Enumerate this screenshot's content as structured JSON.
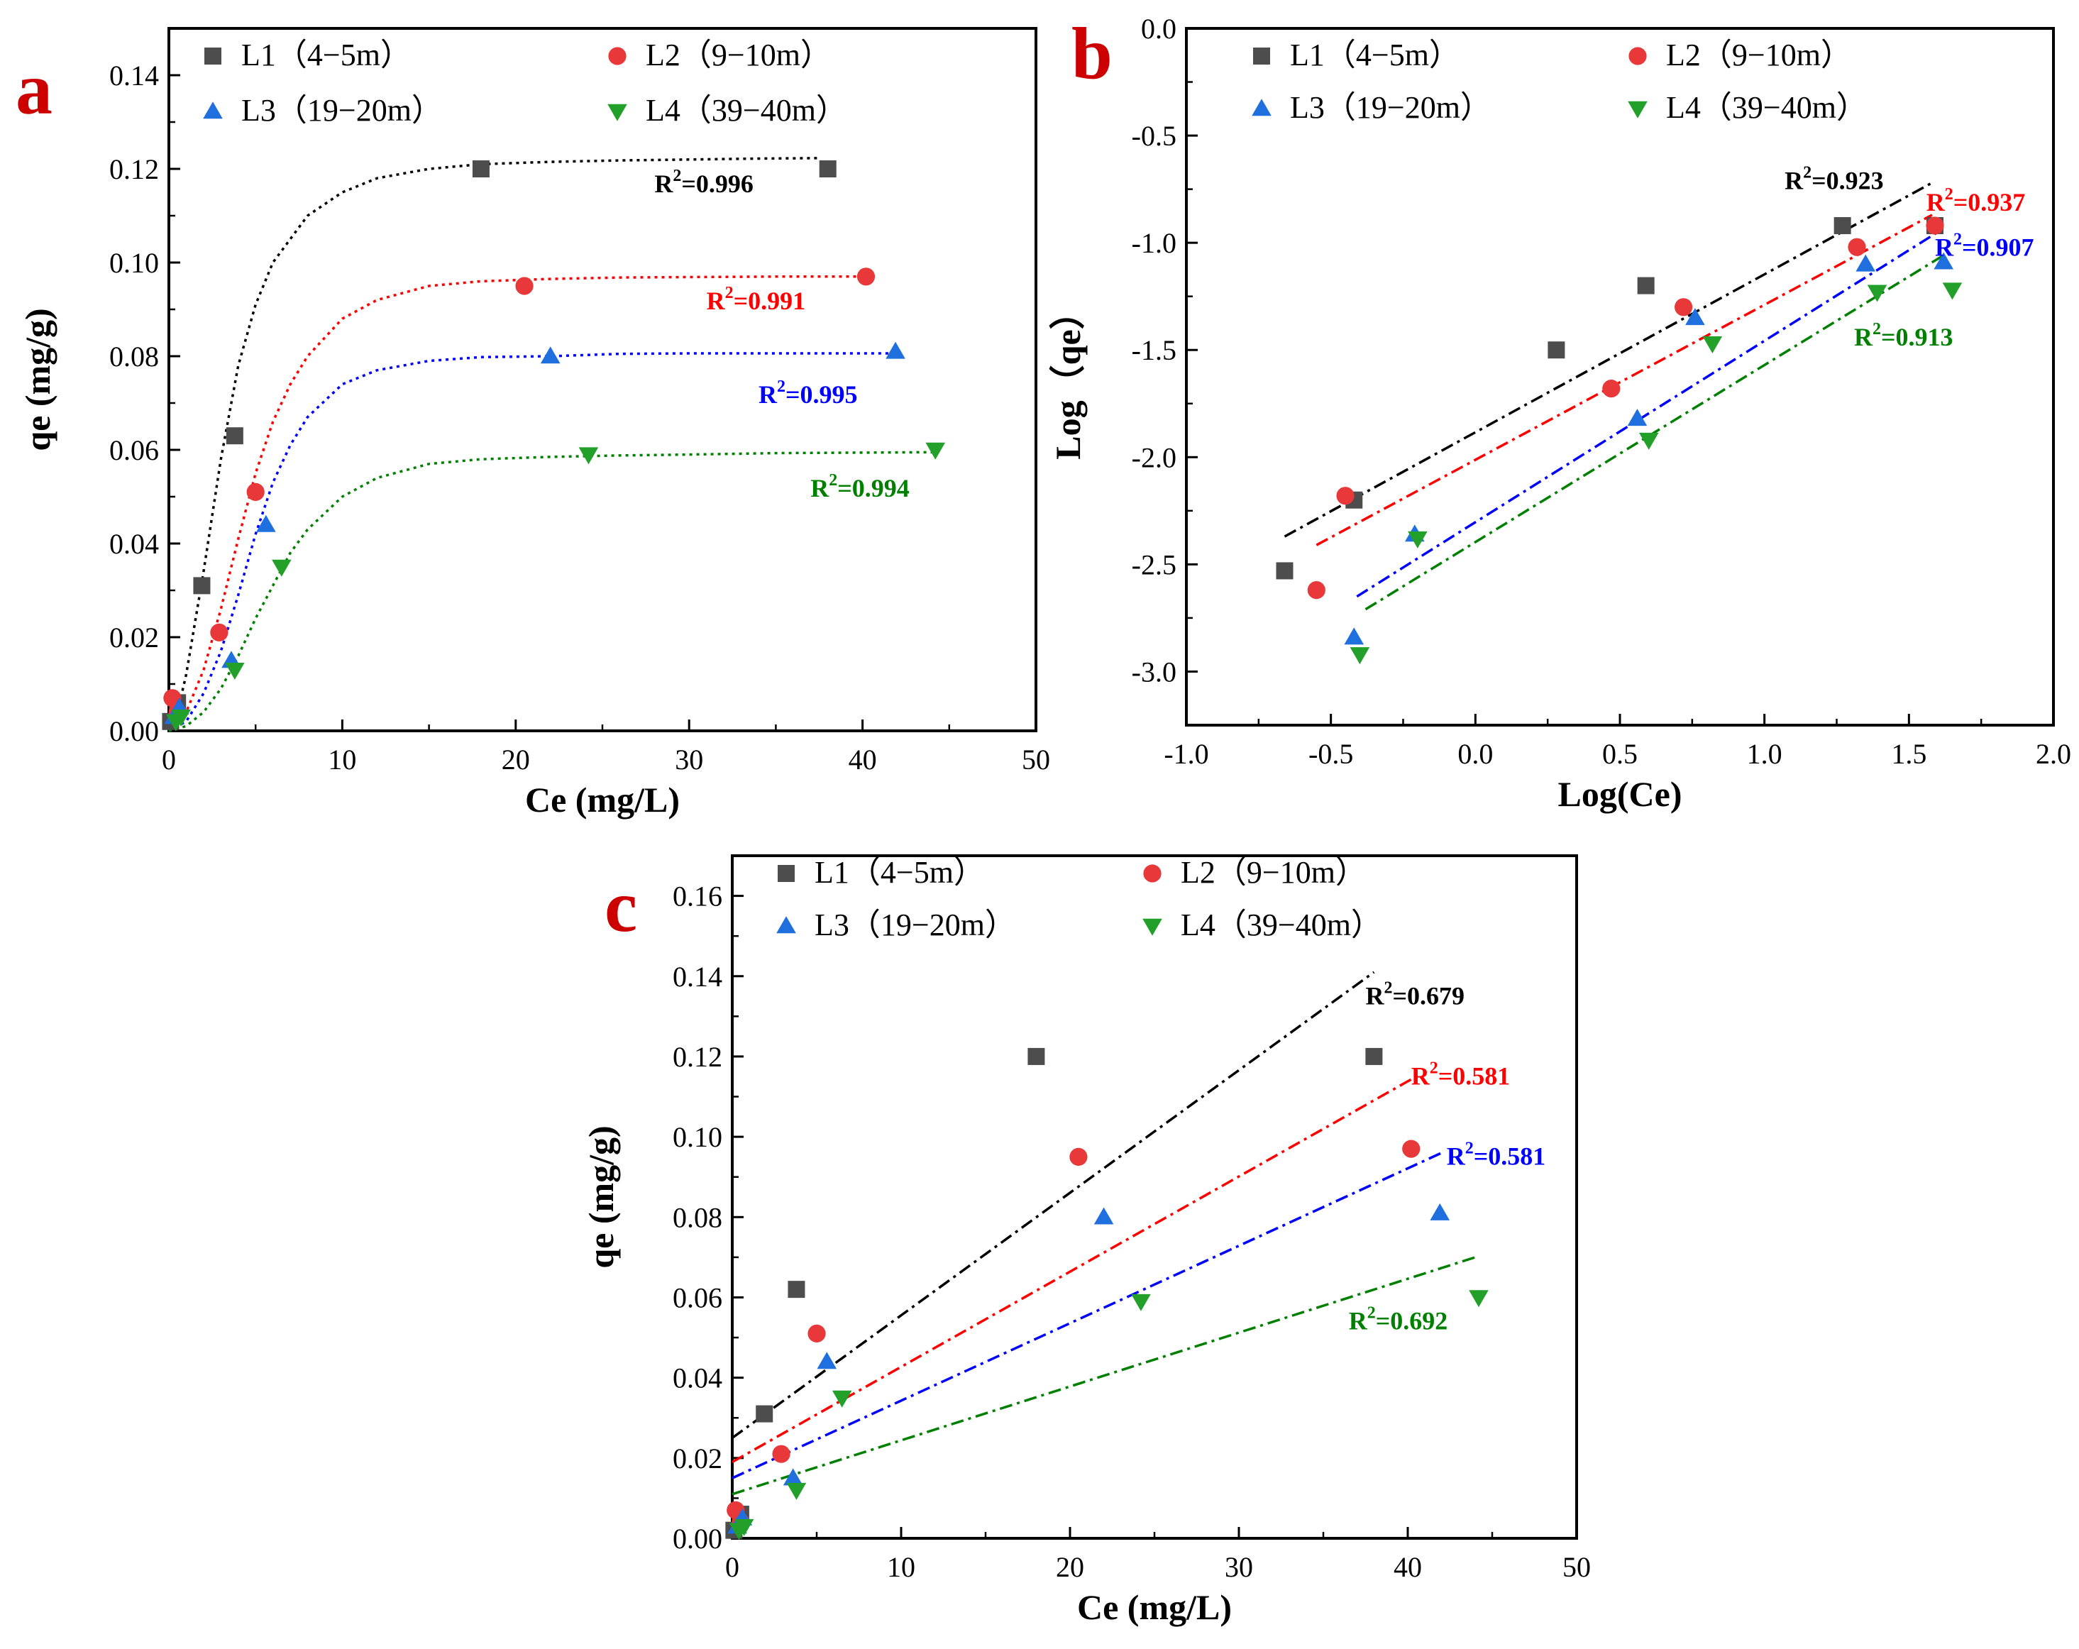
{
  "panels": [
    {
      "id": "a",
      "letter": "a",
      "letter_color": "#cc0000",
      "xlabel": "Ce (mg/L)",
      "ylabel": "qe (mg/g)",
      "xlim": [
        0,
        50
      ],
      "ylim": [
        0,
        0.15
      ],
      "xticks": [
        0,
        10,
        20,
        30,
        40,
        50
      ],
      "yticks": [
        0.0,
        0.02,
        0.04,
        0.06,
        0.08,
        0.1,
        0.12,
        0.14
      ],
      "ytick_decimals": 2,
      "xtick_decimals": 0,
      "fit_style": "dotted",
      "legend": [
        {
          "label": "L1（4−5m）",
          "series": 0
        },
        {
          "label": "L2（9−10m）",
          "series": 1
        },
        {
          "label": "L3（19−20m）",
          "series": 2
        },
        {
          "label": "L4（39−40m）",
          "series": 3
        }
      ],
      "r2_labels": [
        {
          "text_pre": "R",
          "sup": "2",
          "text_post": "=0.996",
          "series": 0,
          "at": [
            28,
            0.115
          ]
        },
        {
          "text_pre": "R",
          "sup": "2",
          "text_post": "=0.991",
          "series": 1,
          "at": [
            31,
            0.09
          ]
        },
        {
          "text_pre": "R",
          "sup": "2",
          "text_post": "=0.995",
          "series": 2,
          "at": [
            34,
            0.07
          ]
        },
        {
          "text_pre": "R",
          "sup": "2",
          "text_post": "=0.994",
          "series": 3,
          "at": [
            37,
            0.05
          ]
        }
      ]
    },
    {
      "id": "b",
      "letter": "b",
      "letter_color": "#cc0000",
      "xlabel": "Log(Ce)",
      "ylabel": "Log（qe）",
      "xlim": [
        -1.0,
        2.0
      ],
      "ylim": [
        -3.25,
        0.0
      ],
      "xticks": [
        -1.0,
        -0.5,
        0.0,
        0.5,
        1.0,
        1.5,
        2.0
      ],
      "yticks": [
        -3.0,
        -2.5,
        -2.0,
        -1.5,
        -1.0,
        -0.5,
        0.0
      ],
      "ytick_decimals": 1,
      "xtick_decimals": 1,
      "fit_style": "dashdot",
      "legend": [
        {
          "label": "L1（4−5m）",
          "series": 0
        },
        {
          "label": "L2（9−10m）",
          "series": 1
        },
        {
          "label": "L3（19−20m）",
          "series": 2
        },
        {
          "label": "L4（39−40m）",
          "series": 3
        }
      ],
      "r2_labels": [
        {
          "text_pre": "R",
          "sup": "2",
          "text_post": "=0.923",
          "series": 0,
          "at": [
            1.07,
            -0.75
          ]
        },
        {
          "text_pre": "R",
          "sup": "2",
          "text_post": "=0.937",
          "series": 1,
          "at": [
            1.56,
            -0.85
          ]
        },
        {
          "text_pre": "R",
          "sup": "2",
          "text_post": "=0.907",
          "series": 2,
          "at": [
            1.59,
            -1.06
          ]
        },
        {
          "text_pre": "R",
          "sup": "2",
          "text_post": "=0.913",
          "series": 3,
          "at": [
            1.31,
            -1.48
          ]
        }
      ]
    },
    {
      "id": "c",
      "letter": "c",
      "letter_color": "#cc0000",
      "xlabel": "Ce (mg/L)",
      "ylabel": "qe (mg/g)",
      "xlim": [
        0,
        50
      ],
      "ylim": [
        0,
        0.17
      ],
      "xticks": [
        0,
        10,
        20,
        30,
        40,
        50
      ],
      "yticks": [
        0.0,
        0.02,
        0.04,
        0.06,
        0.08,
        0.1,
        0.12,
        0.14,
        0.16
      ],
      "ytick_decimals": 2,
      "xtick_decimals": 0,
      "fit_style": "dashdot",
      "legend": [
        {
          "label": "L1（4−5m）",
          "series": 0
        },
        {
          "label": "L2（9−10m）",
          "series": 1
        },
        {
          "label": "L3（19−20m）",
          "series": 2
        },
        {
          "label": "L4（39−40m）",
          "series": 3
        }
      ],
      "r2_labels": [
        {
          "text_pre": "R",
          "sup": "2",
          "text_post": "=0.679",
          "series": 0,
          "at": [
            37.5,
            0.133
          ]
        },
        {
          "text_pre": "R",
          "sup": "2",
          "text_post": "=0.581",
          "series": 1,
          "at": [
            40.2,
            0.113
          ]
        },
        {
          "text_pre": "R",
          "sup": "2",
          "text_post": "=0.581",
          "series": 2,
          "at": [
            42.3,
            0.093
          ]
        },
        {
          "text_pre": "R",
          "sup": "2",
          "text_post": "=0.692",
          "series": 3,
          "at": [
            36.5,
            0.052
          ]
        }
      ]
    }
  ],
  "chart_data": [
    {
      "panel": "a",
      "type": "scatter",
      "xlabel": "Ce (mg/L)",
      "ylabel": "qe (mg/g)",
      "xlim": [
        0,
        50
      ],
      "ylim": [
        0,
        0.15
      ],
      "legend_placement": "top",
      "grid": false,
      "series": [
        {
          "name": "L1（4−5m）",
          "color": "#4d4d4d",
          "marker": "square",
          "fit_color": "#000000",
          "x": [
            0.1,
            0.5,
            1.9,
            3.8,
            18.0,
            38.0
          ],
          "y": [
            0.002,
            0.006,
            0.031,
            0.063,
            0.12,
            0.12
          ],
          "fit_x": [
            0,
            0.5,
            1,
            2,
            3,
            4,
            5,
            6,
            8,
            10,
            12,
            15,
            18,
            22,
            26,
            30,
            34,
            37.5
          ],
          "fit_y": [
            0,
            0.004,
            0.012,
            0.034,
            0.058,
            0.078,
            0.091,
            0.1,
            0.11,
            0.115,
            0.118,
            0.12,
            0.121,
            0.1215,
            0.1218,
            0.122,
            0.1222,
            0.1223
          ]
        },
        {
          "name": "L2（9−10m）",
          "color": "#e8383a",
          "marker": "circle",
          "fit_color": "#ff0000",
          "x": [
            0.2,
            0.5,
            2.9,
            5.0,
            20.5,
            40.2
          ],
          "y": [
            0.007,
            0.004,
            0.021,
            0.051,
            0.095,
            0.097
          ],
          "fit_x": [
            0,
            1,
            2,
            3,
            4,
            5,
            6,
            7,
            8,
            10,
            12,
            15,
            18,
            22,
            26,
            30,
            35,
            40
          ],
          "fit_y": [
            0,
            0.004,
            0.013,
            0.026,
            0.041,
            0.055,
            0.066,
            0.074,
            0.08,
            0.088,
            0.092,
            0.095,
            0.096,
            0.0965,
            0.0968,
            0.0969,
            0.097,
            0.097
          ]
        },
        {
          "name": "L3（19−20m）",
          "color": "#1f6fde",
          "marker": "triangle-up",
          "fit_color": "#0000ff",
          "x": [
            0.3,
            0.6,
            3.6,
            5.6,
            22.0,
            41.9
          ],
          "y": [
            0.003,
            0.005,
            0.015,
            0.044,
            0.08,
            0.081
          ],
          "fit_x": [
            0,
            1,
            2,
            3,
            4,
            5,
            6,
            7,
            8,
            10,
            12,
            15,
            18,
            22,
            26,
            30,
            35,
            42
          ],
          "fit_y": [
            0,
            0.002,
            0.008,
            0.017,
            0.029,
            0.042,
            0.053,
            0.061,
            0.067,
            0.074,
            0.077,
            0.079,
            0.0798,
            0.08,
            0.0805,
            0.0806,
            0.0806,
            0.0806
          ]
        },
        {
          "name": "L4（39−40m）",
          "color": "#22a02a",
          "marker": "triangle-down",
          "fit_color": "#008000",
          "x": [
            0.4,
            0.7,
            3.8,
            6.5,
            24.2,
            44.2
          ],
          "y": [
            0.002,
            0.003,
            0.013,
            0.035,
            0.059,
            0.06
          ],
          "fit_x": [
            0,
            1,
            2,
            3,
            4,
            5,
            6,
            7,
            8,
            10,
            12,
            15,
            18,
            22,
            26,
            30,
            35,
            44
          ],
          "fit_y": [
            0,
            0.001,
            0.004,
            0.009,
            0.016,
            0.024,
            0.031,
            0.038,
            0.043,
            0.05,
            0.054,
            0.057,
            0.058,
            0.0585,
            0.0588,
            0.059,
            0.0593,
            0.0595
          ]
        }
      ],
      "annotations": [
        "R2=0.996",
        "R2=0.991",
        "R2=0.995",
        "R2=0.994"
      ]
    },
    {
      "panel": "b",
      "type": "scatter",
      "xlabel": "Log(Ce)",
      "ylabel": "Log（qe）",
      "xlim": [
        -1.0,
        2.0
      ],
      "ylim": [
        -3.25,
        0.0
      ],
      "legend_placement": "top",
      "grid": false,
      "series": [
        {
          "name": "L1（4−5m）",
          "color": "#4d4d4d",
          "marker": "square",
          "fit_color": "#000000",
          "x": [
            -0.66,
            -0.42,
            0.28,
            0.59,
            1.27,
            1.59
          ],
          "y": [
            -2.53,
            -2.2,
            -1.5,
            -1.2,
            -0.92,
            -0.92
          ],
          "fit_x": [
            -0.66,
            1.58
          ],
          "fit_y": [
            -2.37,
            -0.72
          ]
        },
        {
          "name": "L2（9−10m）",
          "color": "#e8383a",
          "marker": "circle",
          "fit_color": "#ff0000",
          "x": [
            -0.55,
            -0.45,
            0.47,
            0.72,
            1.32,
            1.59
          ],
          "y": [
            -2.62,
            -2.18,
            -1.68,
            -1.3,
            -1.02,
            -0.92
          ],
          "fit_x": [
            -0.55,
            1.58
          ],
          "fit_y": [
            -2.41,
            -0.87
          ]
        },
        {
          "name": "L3（19−20m）",
          "color": "#1f6fde",
          "marker": "triangle-up",
          "fit_color": "#0000ff",
          "x": [
            -0.42,
            -0.21,
            0.56,
            0.76,
            1.35,
            1.62
          ],
          "y": [
            -2.84,
            -2.36,
            -1.82,
            -1.35,
            -1.1,
            -1.09
          ],
          "fit_x": [
            -0.41,
            1.6
          ],
          "fit_y": [
            -2.65,
            -0.95
          ]
        },
        {
          "name": "L4（39−40m）",
          "color": "#22a02a",
          "marker": "triangle-down",
          "fit_color": "#008000",
          "x": [
            -0.4,
            -0.2,
            0.6,
            0.82,
            1.39,
            1.65
          ],
          "y": [
            -2.92,
            -2.38,
            -1.92,
            -1.47,
            -1.23,
            -1.22
          ],
          "fit_x": [
            -0.38,
            1.63
          ],
          "fit_y": [
            -2.71,
            -1.05
          ]
        }
      ],
      "annotations": [
        "R2=0.923",
        "R2=0.937",
        "R2=0.907",
        "R2=0.913"
      ]
    },
    {
      "panel": "c",
      "type": "scatter",
      "xlabel": "Ce (mg/L)",
      "ylabel": "qe (mg/g)",
      "xlim": [
        0,
        50
      ],
      "ylim": [
        0,
        0.17
      ],
      "legend_placement": "top",
      "grid": false,
      "series": [
        {
          "name": "L1（4−5m）",
          "color": "#4d4d4d",
          "marker": "square",
          "fit_color": "#000000",
          "x": [
            0.1,
            0.5,
            1.9,
            3.8,
            18.0,
            38.0
          ],
          "y": [
            0.002,
            0.006,
            0.031,
            0.062,
            0.12,
            0.12
          ],
          "fit_x": [
            0,
            38
          ],
          "fit_y": [
            0.025,
            0.141
          ]
        },
        {
          "name": "L2（9−10m）",
          "color": "#e8383a",
          "marker": "circle",
          "fit_color": "#ff0000",
          "x": [
            0.2,
            0.5,
            2.9,
            5.0,
            20.5,
            40.2
          ],
          "y": [
            0.007,
            0.004,
            0.021,
            0.051,
            0.095,
            0.097
          ],
          "fit_x": [
            0,
            40.5
          ],
          "fit_y": [
            0.019,
            0.115
          ]
        },
        {
          "name": "L3（19−20m）",
          "color": "#1f6fde",
          "marker": "triangle-up",
          "fit_color": "#0000ff",
          "x": [
            0.3,
            0.6,
            3.6,
            5.6,
            22.0,
            41.9
          ],
          "y": [
            0.003,
            0.005,
            0.015,
            0.044,
            0.08,
            0.081
          ],
          "fit_x": [
            0,
            42
          ],
          "fit_y": [
            0.015,
            0.096
          ]
        },
        {
          "name": "L4（39−40m）",
          "color": "#22a02a",
          "marker": "triangle-down",
          "fit_color": "#008000",
          "x": [
            0.4,
            0.7,
            3.8,
            6.5,
            24.2,
            44.2
          ],
          "y": [
            0.002,
            0.003,
            0.012,
            0.035,
            0.059,
            0.06
          ],
          "fit_x": [
            0,
            44
          ],
          "fit_y": [
            0.011,
            0.07
          ]
        }
      ],
      "annotations": [
        "R2=0.679",
        "R2=0.581",
        "R2=0.581",
        "R2=0.692"
      ]
    }
  ]
}
